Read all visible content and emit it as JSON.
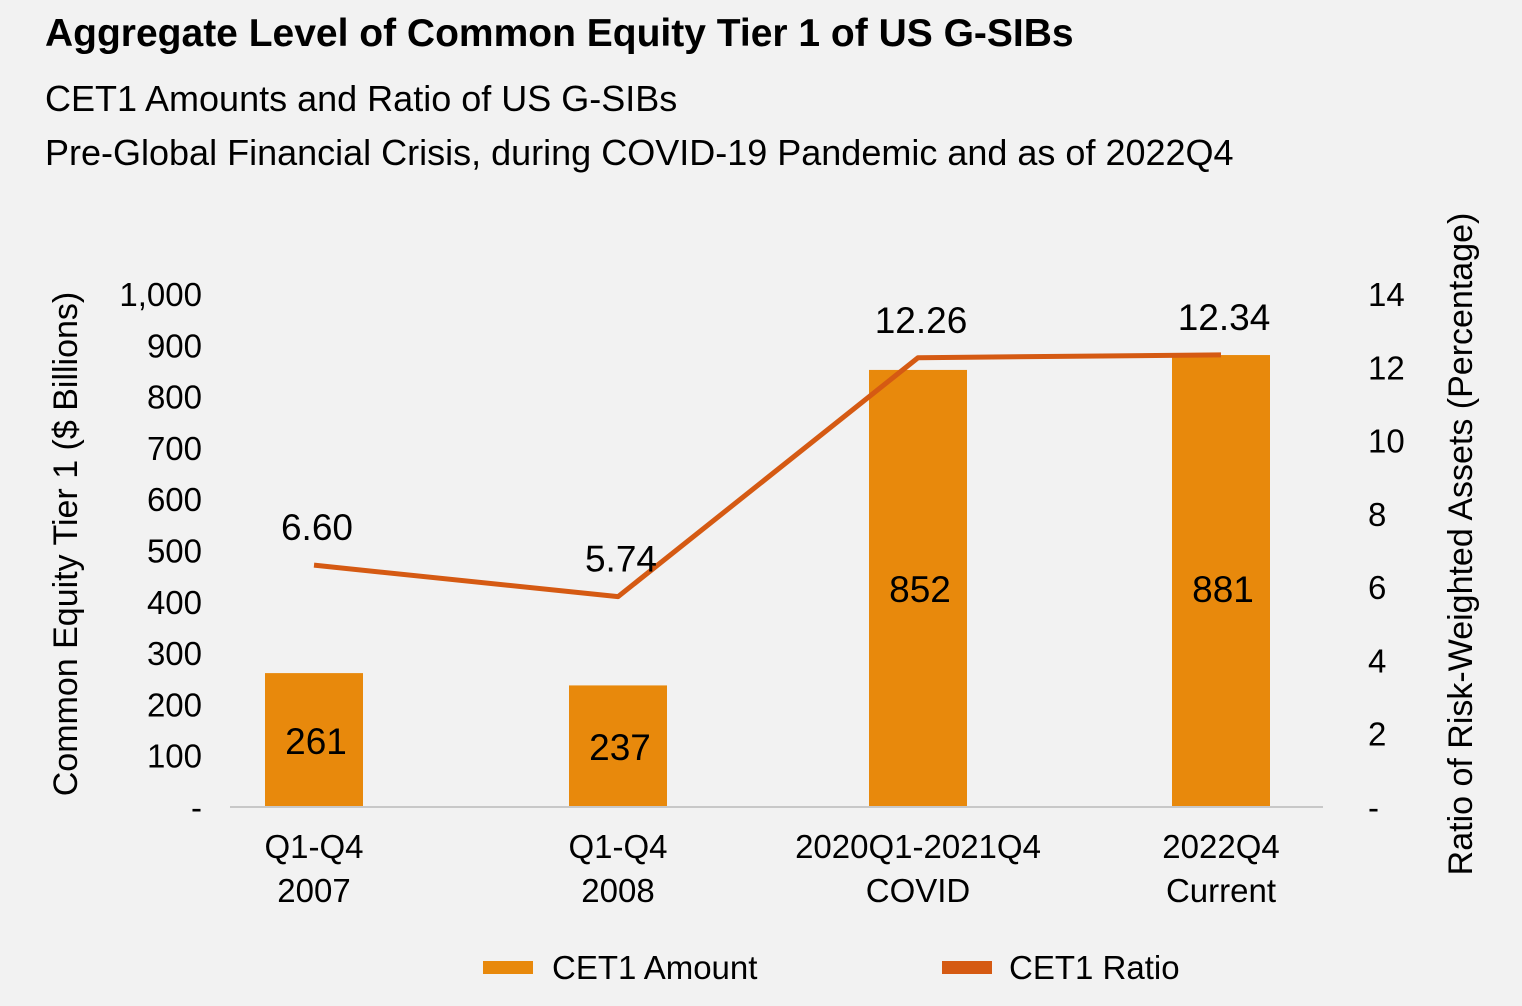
{
  "header": {
    "title": "Aggregate Level of Common Equity Tier 1 of US G-SIBs",
    "subtitle_line1": "CET1 Amounts and Ratio of US G-SIBs",
    "subtitle_line2": "Pre-Global Financial Crisis, during COVID-19 Pandemic and as of 2022Q4"
  },
  "chart_data": {
    "type": "bar",
    "title": "Aggregate Level of Common Equity Tier 1 of US G-SIBs",
    "categories": [
      [
        "Q1-Q4",
        "2007"
      ],
      [
        "Q1-Q4",
        "2008"
      ],
      [
        "2020Q1-2021Q4",
        "COVID"
      ],
      [
        "2022Q4",
        "Current"
      ]
    ],
    "series": [
      {
        "name": "CET1 Amount",
        "type": "bar",
        "axis": "left",
        "values": [
          261,
          237,
          852,
          881
        ],
        "labels": [
          "261",
          "237",
          "852",
          "881"
        ],
        "color": "#e8890c"
      },
      {
        "name": "CET1 Ratio",
        "type": "line",
        "axis": "right",
        "values": [
          6.6,
          5.74,
          12.26,
          12.34
        ],
        "labels": [
          "6.60",
          "5.74",
          "12.26",
          "12.34"
        ],
        "color": "#d55a13"
      }
    ],
    "ylabel": "Common Equity Tier 1 ($ Billions)",
    "ylim": [
      0,
      1000
    ],
    "yticks": [
      "-",
      "100",
      "200",
      "300",
      "400",
      "500",
      "600",
      "700",
      "800",
      "900",
      "1,000"
    ],
    "y2label": "Ratio of Risk-Weighted Assets (Percentage)",
    "y2lim": [
      0,
      14
    ],
    "y2ticks": [
      "-",
      "2",
      "4",
      "6",
      "8",
      "10",
      "12",
      "14"
    ],
    "grid": false,
    "legend_position": "bottom"
  }
}
